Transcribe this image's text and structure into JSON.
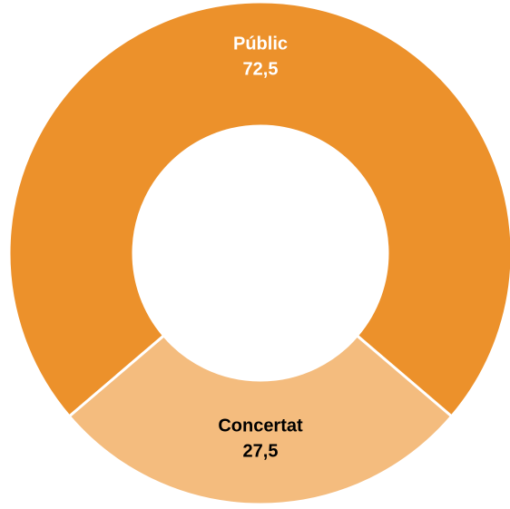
{
  "chart_data": {
    "type": "pie",
    "donut": true,
    "title": "",
    "categories": [
      "Públic",
      "Concertat"
    ],
    "values": [
      72.5,
      27.5
    ],
    "value_labels": [
      "72,5",
      "27,5"
    ],
    "colors": [
      "#ec912b",
      "#f4bc7e"
    ],
    "label_colors": [
      "#ffffff",
      "#000000"
    ],
    "legend": "none"
  }
}
